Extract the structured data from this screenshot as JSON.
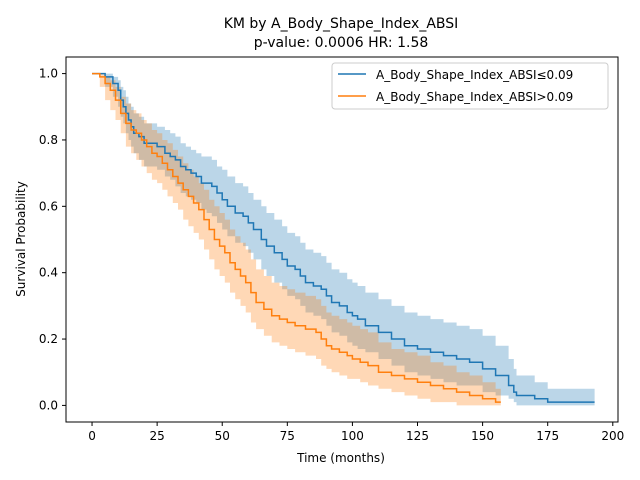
{
  "chart_data": {
    "type": "line",
    "title": "KM by A_Body_Shape_Index_ABSI",
    "subtitle": "p-value: 0.0006  HR: 1.58",
    "xlabel": "Time (months)",
    "ylabel": "Survival Probability",
    "xlim": [
      -10,
      202
    ],
    "ylim": [
      -0.05,
      1.05
    ],
    "xticks": [
      0,
      25,
      50,
      75,
      100,
      125,
      150,
      175,
      200
    ],
    "yticks": [
      0.0,
      0.2,
      0.4,
      0.6,
      0.8,
      1.0
    ],
    "grid": false,
    "legend_position": "top-right",
    "series": [
      {
        "name": "A_Body_Shape_Index_ABSI≤0.09",
        "color": "#1f77b4",
        "x": [
          0,
          5,
          8,
          10,
          11,
          12,
          13,
          14,
          15,
          16,
          18,
          20,
          25,
          28,
          30,
          32,
          34,
          36,
          38,
          40,
          42,
          44,
          46,
          48,
          50,
          52,
          55,
          58,
          60,
          62,
          65,
          67,
          70,
          73,
          75,
          78,
          80,
          82,
          85,
          88,
          90,
          92,
          95,
          98,
          100,
          102,
          105,
          110,
          115,
          120,
          125,
          130,
          135,
          140,
          145,
          150,
          155,
          160,
          162,
          163,
          170,
          175,
          180,
          185,
          193
        ],
        "y": [
          1.0,
          0.99,
          0.97,
          0.95,
          0.92,
          0.9,
          0.88,
          0.86,
          0.84,
          0.82,
          0.81,
          0.79,
          0.78,
          0.76,
          0.75,
          0.74,
          0.72,
          0.71,
          0.7,
          0.69,
          0.67,
          0.67,
          0.66,
          0.64,
          0.62,
          0.6,
          0.58,
          0.57,
          0.55,
          0.53,
          0.5,
          0.48,
          0.46,
          0.44,
          0.42,
          0.41,
          0.39,
          0.37,
          0.36,
          0.35,
          0.33,
          0.31,
          0.3,
          0.28,
          0.27,
          0.26,
          0.24,
          0.22,
          0.2,
          0.18,
          0.17,
          0.16,
          0.15,
          0.14,
          0.13,
          0.11,
          0.09,
          0.06,
          0.04,
          0.03,
          0.02,
          0.01,
          0.01,
          0.01,
          0.01
        ],
        "ci_upper": [
          1.0,
          1.0,
          0.99,
          0.98,
          0.96,
          0.95,
          0.93,
          0.91,
          0.9,
          0.88,
          0.87,
          0.85,
          0.84,
          0.83,
          0.82,
          0.81,
          0.79,
          0.78,
          0.77,
          0.76,
          0.75,
          0.75,
          0.74,
          0.72,
          0.71,
          0.69,
          0.67,
          0.66,
          0.64,
          0.62,
          0.6,
          0.58,
          0.56,
          0.54,
          0.52,
          0.51,
          0.49,
          0.47,
          0.46,
          0.45,
          0.43,
          0.41,
          0.4,
          0.38,
          0.37,
          0.36,
          0.34,
          0.32,
          0.3,
          0.28,
          0.27,
          0.26,
          0.25,
          0.24,
          0.23,
          0.21,
          0.18,
          0.14,
          0.11,
          0.09,
          0.07,
          0.05,
          0.05,
          0.05,
          0.05
        ],
        "ci_lower": [
          1.0,
          0.96,
          0.93,
          0.9,
          0.87,
          0.85,
          0.82,
          0.8,
          0.78,
          0.76,
          0.74,
          0.72,
          0.71,
          0.69,
          0.68,
          0.66,
          0.64,
          0.63,
          0.62,
          0.61,
          0.59,
          0.58,
          0.57,
          0.55,
          0.53,
          0.51,
          0.49,
          0.48,
          0.46,
          0.44,
          0.41,
          0.39,
          0.37,
          0.35,
          0.33,
          0.32,
          0.3,
          0.28,
          0.27,
          0.26,
          0.24,
          0.22,
          0.21,
          0.19,
          0.18,
          0.17,
          0.16,
          0.14,
          0.12,
          0.1,
          0.09,
          0.08,
          0.07,
          0.06,
          0.06,
          0.04,
          0.03,
          0.02,
          0.01,
          0.0,
          0.0,
          0.0,
          0.0,
          0.0,
          0.0
        ]
      },
      {
        "name": "A_Body_Shape_Index_ABSI>0.09",
        "color": "#ff7f0e",
        "x": [
          0,
          3,
          5,
          7,
          9,
          11,
          13,
          15,
          17,
          19,
          21,
          23,
          25,
          27,
          29,
          31,
          33,
          35,
          37,
          39,
          41,
          43,
          45,
          47,
          49,
          51,
          53,
          55,
          57,
          59,
          61,
          63,
          66,
          69,
          72,
          75,
          78,
          82,
          86,
          88,
          90,
          92,
          95,
          98,
          100,
          103,
          106,
          110,
          115,
          120,
          125,
          130,
          135,
          140,
          145,
          150,
          155,
          157
        ],
        "y": [
          1.0,
          0.99,
          0.97,
          0.95,
          0.92,
          0.88,
          0.85,
          0.83,
          0.82,
          0.8,
          0.78,
          0.76,
          0.75,
          0.73,
          0.71,
          0.69,
          0.67,
          0.65,
          0.63,
          0.61,
          0.59,
          0.56,
          0.53,
          0.5,
          0.48,
          0.46,
          0.43,
          0.41,
          0.39,
          0.37,
          0.34,
          0.31,
          0.29,
          0.27,
          0.26,
          0.25,
          0.24,
          0.23,
          0.22,
          0.2,
          0.18,
          0.17,
          0.16,
          0.15,
          0.14,
          0.13,
          0.12,
          0.1,
          0.09,
          0.08,
          0.07,
          0.06,
          0.05,
          0.04,
          0.03,
          0.02,
          0.01,
          0.01
        ],
        "ci_upper": [
          1.0,
          1.0,
          0.99,
          0.98,
          0.96,
          0.93,
          0.91,
          0.89,
          0.88,
          0.86,
          0.85,
          0.83,
          0.82,
          0.8,
          0.79,
          0.77,
          0.75,
          0.73,
          0.71,
          0.69,
          0.67,
          0.65,
          0.62,
          0.6,
          0.58,
          0.56,
          0.53,
          0.51,
          0.49,
          0.47,
          0.44,
          0.41,
          0.39,
          0.37,
          0.36,
          0.35,
          0.34,
          0.33,
          0.32,
          0.3,
          0.28,
          0.27,
          0.26,
          0.25,
          0.24,
          0.23,
          0.22,
          0.19,
          0.17,
          0.16,
          0.15,
          0.13,
          0.12,
          0.1,
          0.09,
          0.07,
          0.05,
          0.05
        ],
        "ci_lower": [
          1.0,
          0.96,
          0.92,
          0.89,
          0.86,
          0.82,
          0.78,
          0.76,
          0.74,
          0.72,
          0.7,
          0.68,
          0.67,
          0.65,
          0.63,
          0.61,
          0.59,
          0.56,
          0.54,
          0.52,
          0.5,
          0.47,
          0.44,
          0.41,
          0.39,
          0.37,
          0.34,
          0.32,
          0.3,
          0.28,
          0.25,
          0.23,
          0.21,
          0.19,
          0.18,
          0.17,
          0.16,
          0.15,
          0.14,
          0.12,
          0.11,
          0.1,
          0.09,
          0.08,
          0.08,
          0.07,
          0.06,
          0.05,
          0.04,
          0.03,
          0.02,
          0.01,
          0.01,
          0.0,
          0.0,
          0.0,
          0.0,
          0.0
        ]
      }
    ]
  }
}
